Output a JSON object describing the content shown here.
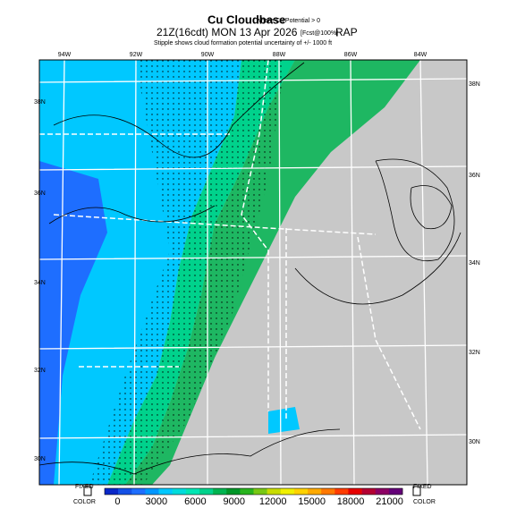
{
  "header": {
    "title": "Cu Cloudbase",
    "title_note": "where Cu Potential > 0",
    "time": "21Z(16cdt) MON 13 Apr 2026",
    "time_note": "[Fcst@100%]",
    "model": "RAP",
    "subtitle": "Stipple shows cloud formation potential uncertainty of +/- 1000 ft"
  },
  "map": {
    "lon_labels": [
      "94W",
      "92W",
      "90W",
      "88W",
      "86W",
      "84W"
    ],
    "lat_labels_left": [
      "38N",
      "36N",
      "34N",
      "32N",
      "30N"
    ],
    "lat_labels_right": [
      "38N",
      "36N",
      "34N",
      "32N",
      "30N"
    ]
  },
  "colorbar": {
    "ticks": [
      0,
      3000,
      6000,
      9000,
      12000,
      15000,
      18000,
      21000
    ],
    "range": [
      -1000,
      22000
    ],
    "colors": [
      "#0a28c8",
      "#1450e6",
      "#1e6eff",
      "#0096ff",
      "#00c8ff",
      "#00dcdc",
      "#00e6b4",
      "#00d28c",
      "#00b450",
      "#009628",
      "#28b41e",
      "#78c814",
      "#c8dc00",
      "#f0f000",
      "#ffd200",
      "#ffaa00",
      "#ff7800",
      "#ff3c00",
      "#e60000",
      "#b40032",
      "#8c0064",
      "#640078"
    ],
    "left_box": [
      "FIXED",
      "COLOR"
    ],
    "right_box": [
      "FIXED",
      "COLOR"
    ]
  }
}
